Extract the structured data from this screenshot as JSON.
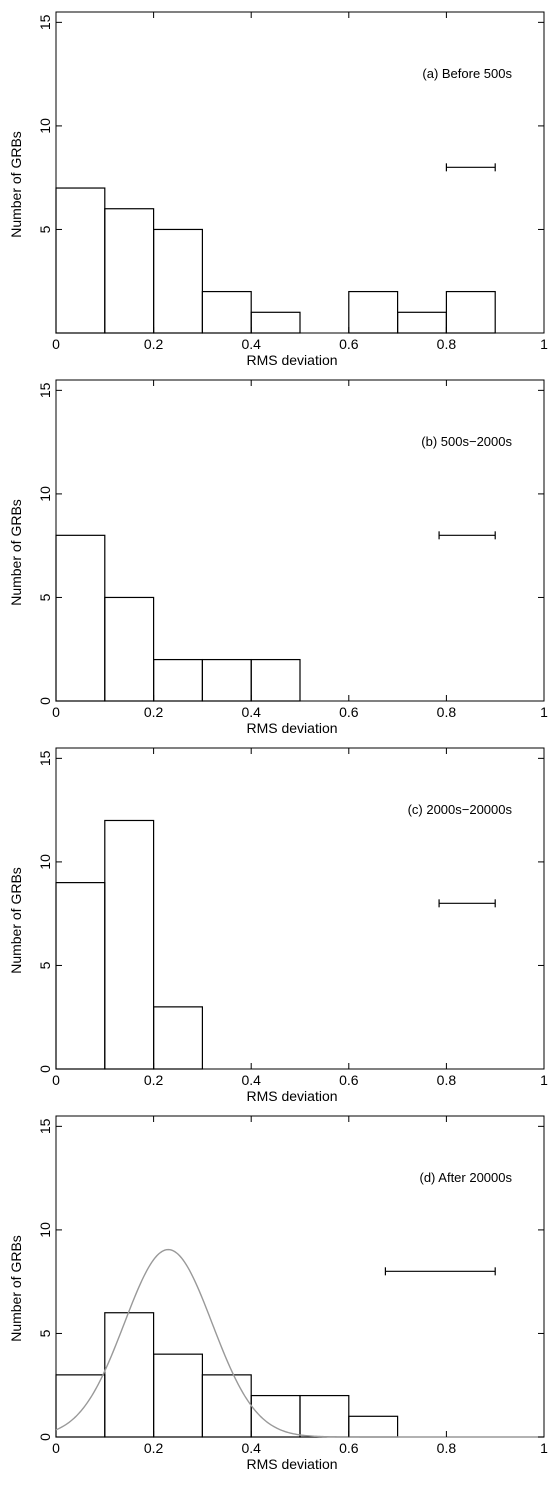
{
  "chart_data": [
    {
      "type": "bar",
      "annotation": "(a) Before 500s",
      "xlabel": "RMS deviation",
      "ylabel": "Number of GRBs",
      "xlim": [
        0,
        1
      ],
      "ylim": [
        0,
        15.5
      ],
      "xticks": [
        "0",
        "0.2",
        "0.4",
        "0.6",
        "0.8",
        "1"
      ],
      "yticks": [
        "5",
        "10",
        "15"
      ],
      "bin_width": 0.1,
      "bin_starts": [
        0,
        0.1,
        0.2,
        0.3,
        0.4,
        0.5,
        0.6,
        0.7,
        0.8
      ],
      "values": [
        7,
        6,
        5,
        2,
        1,
        0,
        2,
        1,
        2
      ],
      "error_bar": {
        "x_start": 0.8,
        "x_end": 0.9,
        "y": 8
      }
    },
    {
      "type": "bar",
      "annotation": "(b) 500s−2000s",
      "xlabel": "RMS deviation",
      "ylabel": "Number of GRBs",
      "xlim": [
        0,
        1
      ],
      "ylim": [
        0,
        15.5
      ],
      "xticks": [
        "0",
        "0.2",
        "0.4",
        "0.6",
        "0.8",
        "1"
      ],
      "yticks": [
        "0",
        "5",
        "10",
        "15"
      ],
      "bin_width": 0.1,
      "bin_starts": [
        0,
        0.1,
        0.2,
        0.3,
        0.4
      ],
      "values": [
        8,
        5,
        2,
        2,
        2
      ],
      "error_bar": {
        "x_start": 0.785,
        "x_end": 0.9,
        "y": 8
      }
    },
    {
      "type": "bar",
      "annotation": "(c) 2000s−20000s",
      "xlabel": "RMS deviation",
      "ylabel": "Number of GRBs",
      "xlim": [
        0,
        1
      ],
      "ylim": [
        0,
        15.5
      ],
      "xticks": [
        "0",
        "0.2",
        "0.4",
        "0.6",
        "0.8",
        "1"
      ],
      "yticks": [
        "0",
        "5",
        "10",
        "15"
      ],
      "bin_width": 0.1,
      "bin_starts": [
        0,
        0.1,
        0.2
      ],
      "values": [
        9,
        12,
        3
      ],
      "error_bar": {
        "x_start": 0.785,
        "x_end": 0.9,
        "y": 8
      }
    },
    {
      "type": "bar",
      "annotation": "(d) After 20000s",
      "xlabel": "RMS deviation",
      "ylabel": "Number of GRBs",
      "xlim": [
        0,
        1
      ],
      "ylim": [
        0,
        15.5
      ],
      "xticks": [
        "0",
        "0.2",
        "0.4",
        "0.6",
        "0.8",
        "1"
      ],
      "yticks": [
        "0",
        "5",
        "10",
        "15"
      ],
      "bin_width": 0.1,
      "bin_starts": [
        0,
        0.1,
        0.2,
        0.3,
        0.4,
        0.5,
        0.6
      ],
      "values": [
        3,
        6,
        4,
        3,
        2,
        2,
        1
      ],
      "error_bar": {
        "x_start": 0.675,
        "x_end": 0.9,
        "y": 8
      },
      "curve": {
        "type": "gaussian",
        "mean": 0.23,
        "sigma": 0.09,
        "peak": 9.05,
        "color": "#999999"
      }
    }
  ]
}
